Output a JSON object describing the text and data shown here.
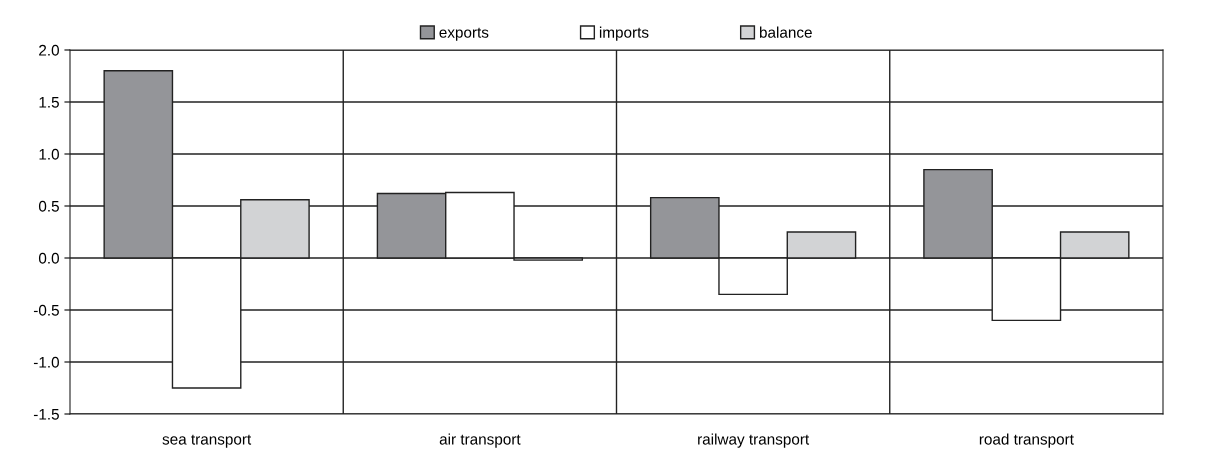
{
  "chart_data": {
    "type": "bar",
    "categories": [
      "sea transport",
      "air transport",
      "railway transport",
      "road transport"
    ],
    "series": [
      {
        "name": "exports",
        "color": "#949599",
        "values": [
          1.8,
          0.62,
          0.58,
          0.85
        ]
      },
      {
        "name": "imports",
        "color": "#ffffff",
        "values": [
          -1.25,
          0.63,
          -0.35,
          -0.6
        ]
      },
      {
        "name": "balance",
        "color": "#d2d3d5",
        "values": [
          0.56,
          -0.02,
          0.25,
          0.25
        ]
      }
    ],
    "ylim": [
      -1.5,
      2.0
    ],
    "yticks": [
      {
        "value": -1.5,
        "label": "-1.5"
      },
      {
        "value": -1.0,
        "label": "-1.0"
      },
      {
        "value": -0.5,
        "label": "-0.5"
      },
      {
        "value": 0.0,
        "label": "0.0"
      },
      {
        "value": 0.5,
        "label": "0.5"
      },
      {
        "value": 1.0,
        "label": "1.0"
      },
      {
        "value": 1.5,
        "label": "1.5"
      },
      {
        "value": 2.0,
        "label": "2.0"
      }
    ],
    "grid": true,
    "legend": "top"
  }
}
